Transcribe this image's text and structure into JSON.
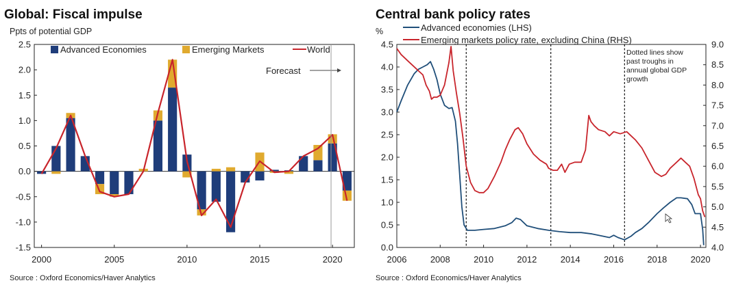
{
  "chart_data": [
    {
      "type": "bar",
      "title": "Global: Fiscal impulse",
      "ylabel": "Ppts of potential GDP",
      "ylim": [
        -1.5,
        2.5
      ],
      "yticks": [
        "2.5",
        "2.0",
        "1.5",
        "1.0",
        "0.5",
        "0.0",
        "-0.5",
        "-1.0",
        "-1.5"
      ],
      "xticks": [
        "2000",
        "2005",
        "2010",
        "2015",
        "2020"
      ],
      "categories": [
        2000,
        2001,
        2002,
        2003,
        2004,
        2005,
        2006,
        2007,
        2008,
        2009,
        2010,
        2011,
        2012,
        2013,
        2014,
        2015,
        2016,
        2017,
        2018,
        2019,
        2020,
        2021
      ],
      "series": [
        {
          "name": "Advanced Economies",
          "kind": "bar",
          "color": "#1f3d7a",
          "values": [
            -0.05,
            0.5,
            1.05,
            0.3,
            -0.25,
            -0.45,
            -0.45,
            0.0,
            1.0,
            1.65,
            0.33,
            -0.75,
            -0.6,
            -1.2,
            -0.22,
            -0.18,
            0.03,
            0.02,
            0.3,
            0.22,
            0.55,
            -0.38
          ]
        },
        {
          "name": "Emerging Markets",
          "kind": "bar",
          "color": "#e0aa2f",
          "values": [
            0.0,
            -0.05,
            0.1,
            0.0,
            -0.2,
            -0.05,
            0.0,
            0.05,
            0.2,
            0.55,
            -0.12,
            -0.12,
            0.05,
            0.08,
            0.0,
            0.37,
            -0.03,
            -0.05,
            0.0,
            0.3,
            0.18,
            -0.2
          ]
        },
        {
          "name": "World",
          "kind": "line",
          "color": "#c8242b",
          "values": [
            -0.05,
            0.45,
            1.1,
            0.3,
            -0.4,
            -0.5,
            -0.45,
            0.0,
            1.15,
            2.2,
            0.2,
            -0.87,
            -0.55,
            -1.1,
            -0.22,
            0.2,
            -0.02,
            0.0,
            0.3,
            0.45,
            0.72,
            -0.58
          ]
        }
      ],
      "forecast_label": "Forecast",
      "forecast_from": 2019.9,
      "source": "Source : Oxford Economics/Haver Analytics"
    },
    {
      "type": "line",
      "title": "Central bank policy rates",
      "ylabel_left": "%",
      "ylim_left": [
        0.0,
        4.5
      ],
      "ylim_right": [
        4.0,
        9.0
      ],
      "yticks_left": [
        "4.5",
        "4.0",
        "3.5",
        "3.0",
        "2.5",
        "2.0",
        "1.5",
        "1.0",
        "0.5",
        "0.0"
      ],
      "yticks_right": [
        "9.0",
        "8.5",
        "8.0",
        "7.5",
        "7.0",
        "6.5",
        "6.0",
        "5.5",
        "5.0",
        "4.5",
        "4.0"
      ],
      "xlim": [
        2006,
        2020.25
      ],
      "xticks": [
        "2006",
        "2008",
        "2010",
        "2012",
        "2014",
        "2016",
        "2018",
        "2020"
      ],
      "series": [
        {
          "name": "Advanced economies (LHS)",
          "axis": "left",
          "color": "#1f4e79",
          "points": [
            [
              2006.0,
              3.0
            ],
            [
              2006.2,
              3.25
            ],
            [
              2006.5,
              3.6
            ],
            [
              2006.8,
              3.85
            ],
            [
              2007.0,
              3.95
            ],
            [
              2007.2,
              4.0
            ],
            [
              2007.4,
              4.05
            ],
            [
              2007.55,
              4.12
            ],
            [
              2007.7,
              3.95
            ],
            [
              2007.85,
              3.72
            ],
            [
              2008.0,
              3.4
            ],
            [
              2008.2,
              3.15
            ],
            [
              2008.4,
              3.08
            ],
            [
              2008.55,
              3.1
            ],
            [
              2008.7,
              2.8
            ],
            [
              2008.8,
              2.3
            ],
            [
              2008.9,
              1.6
            ],
            [
              2009.0,
              0.9
            ],
            [
              2009.1,
              0.5
            ],
            [
              2009.25,
              0.38
            ],
            [
              2009.6,
              0.38
            ],
            [
              2010.0,
              0.4
            ],
            [
              2010.5,
              0.42
            ],
            [
              2011.0,
              0.48
            ],
            [
              2011.3,
              0.55
            ],
            [
              2011.5,
              0.65
            ],
            [
              2011.7,
              0.62
            ],
            [
              2012.0,
              0.48
            ],
            [
              2012.5,
              0.42
            ],
            [
              2013.0,
              0.38
            ],
            [
              2013.5,
              0.35
            ],
            [
              2014.0,
              0.33
            ],
            [
              2014.5,
              0.33
            ],
            [
              2015.0,
              0.3
            ],
            [
              2015.5,
              0.25
            ],
            [
              2015.8,
              0.22
            ],
            [
              2016.0,
              0.27
            ],
            [
              2016.2,
              0.22
            ],
            [
              2016.5,
              0.17
            ],
            [
              2016.8,
              0.25
            ],
            [
              2017.0,
              0.33
            ],
            [
              2017.3,
              0.42
            ],
            [
              2017.6,
              0.55
            ],
            [
              2018.0,
              0.75
            ],
            [
              2018.3,
              0.88
            ],
            [
              2018.6,
              1.0
            ],
            [
              2018.9,
              1.1
            ],
            [
              2019.1,
              1.1
            ],
            [
              2019.4,
              1.08
            ],
            [
              2019.6,
              0.95
            ],
            [
              2019.75,
              0.75
            ],
            [
              2020.0,
              0.75
            ],
            [
              2020.1,
              0.4
            ],
            [
              2020.15,
              0.05
            ]
          ]
        },
        {
          "name": "Emerging markets policy rate, excluding China (RHS)",
          "axis": "right",
          "color": "#c8242b",
          "points": [
            [
              2006.0,
              8.9
            ],
            [
              2006.2,
              8.75
            ],
            [
              2006.5,
              8.6
            ],
            [
              2006.8,
              8.45
            ],
            [
              2007.0,
              8.35
            ],
            [
              2007.2,
              8.25
            ],
            [
              2007.35,
              8.0
            ],
            [
              2007.5,
              7.85
            ],
            [
              2007.6,
              7.65
            ],
            [
              2007.7,
              7.7
            ],
            [
              2007.85,
              7.7
            ],
            [
              2008.0,
              7.75
            ],
            [
              2008.2,
              8.0
            ],
            [
              2008.4,
              8.55
            ],
            [
              2008.5,
              8.95
            ],
            [
              2008.6,
              8.35
            ],
            [
              2008.75,
              7.8
            ],
            [
              2008.9,
              7.3
            ],
            [
              2009.05,
              6.7
            ],
            [
              2009.2,
              6.0
            ],
            [
              2009.4,
              5.6
            ],
            [
              2009.6,
              5.4
            ],
            [
              2009.8,
              5.35
            ],
            [
              2010.0,
              5.35
            ],
            [
              2010.2,
              5.45
            ],
            [
              2010.5,
              5.75
            ],
            [
              2010.8,
              6.1
            ],
            [
              2011.0,
              6.4
            ],
            [
              2011.2,
              6.65
            ],
            [
              2011.45,
              6.9
            ],
            [
              2011.6,
              6.95
            ],
            [
              2011.8,
              6.8
            ],
            [
              2012.0,
              6.55
            ],
            [
              2012.3,
              6.3
            ],
            [
              2012.6,
              6.15
            ],
            [
              2012.9,
              6.05
            ],
            [
              2013.0,
              5.95
            ],
            [
              2013.2,
              5.9
            ],
            [
              2013.4,
              5.9
            ],
            [
              2013.6,
              6.05
            ],
            [
              2013.75,
              5.85
            ],
            [
              2013.95,
              6.05
            ],
            [
              2014.2,
              6.1
            ],
            [
              2014.5,
              6.1
            ],
            [
              2014.7,
              6.4
            ],
            [
              2014.85,
              7.25
            ],
            [
              2014.95,
              7.1
            ],
            [
              2015.1,
              7.0
            ],
            [
              2015.3,
              6.9
            ],
            [
              2015.6,
              6.85
            ],
            [
              2015.8,
              6.75
            ],
            [
              2016.0,
              6.85
            ],
            [
              2016.3,
              6.8
            ],
            [
              2016.6,
              6.85
            ],
            [
              2016.8,
              6.75
            ],
            [
              2017.0,
              6.65
            ],
            [
              2017.3,
              6.45
            ],
            [
              2017.6,
              6.15
            ],
            [
              2017.9,
              5.85
            ],
            [
              2018.2,
              5.75
            ],
            [
              2018.4,
              5.8
            ],
            [
              2018.6,
              5.95
            ],
            [
              2018.9,
              6.1
            ],
            [
              2019.1,
              6.2
            ],
            [
              2019.3,
              6.1
            ],
            [
              2019.5,
              6.0
            ],
            [
              2019.7,
              5.7
            ],
            [
              2019.9,
              5.3
            ],
            [
              2020.0,
              5.2
            ],
            [
              2020.1,
              4.9
            ],
            [
              2020.2,
              4.75
            ]
          ]
        }
      ],
      "dotted_lines_x": [
        2009.2,
        2013.1,
        2016.5
      ],
      "annotation": [
        "Dotted lines show",
        "past troughs in",
        "annual global GDP",
        "growth"
      ],
      "source": "Source : Oxford Economics/Haver Analytics"
    }
  ]
}
